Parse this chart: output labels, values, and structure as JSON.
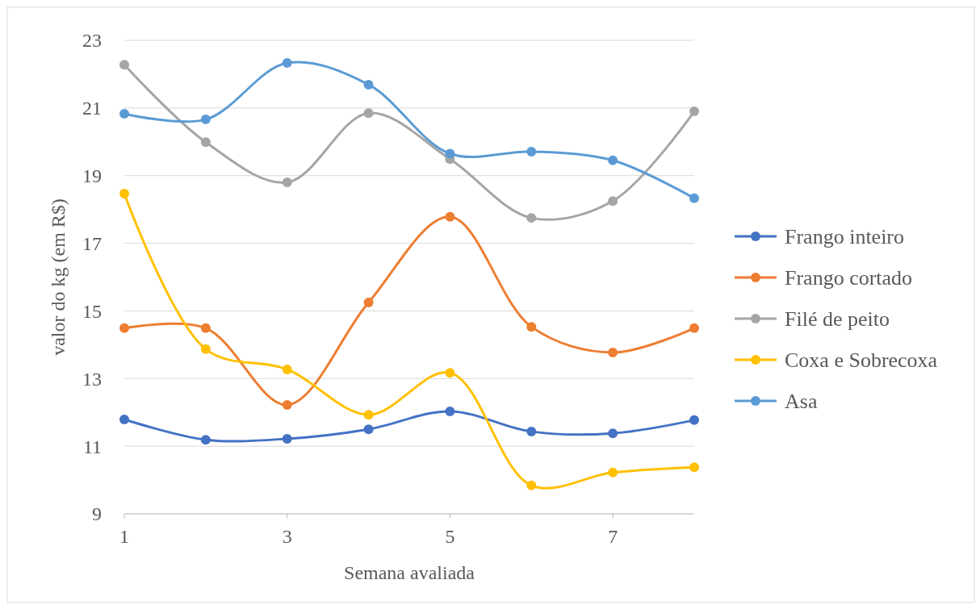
{
  "chart_data": {
    "type": "line",
    "xlabel": "Semana avaliada",
    "ylabel": "valor do kg (em R$)",
    "x": [
      1,
      2,
      3,
      4,
      5,
      6,
      7,
      8
    ],
    "xlim": [
      1,
      8
    ],
    "xticks": [
      1,
      3,
      5,
      7
    ],
    "ylim": [
      9,
      23
    ],
    "yticks": [
      9,
      11,
      13,
      15,
      17,
      19,
      21,
      23
    ],
    "grid": "y",
    "legend": "right",
    "marker": "circle",
    "line_style": "solid",
    "series": [
      {
        "name": "Frango inteiro",
        "color": "#4472c4",
        "values": [
          11.79,
          11.19,
          11.22,
          11.5,
          12.03,
          11.43,
          11.38,
          11.77
        ]
      },
      {
        "name": "Frango cortado",
        "color": "#ed7d31",
        "values": [
          14.49,
          14.49,
          12.22,
          15.25,
          17.78,
          14.53,
          13.77,
          14.49
        ]
      },
      {
        "name": "Filé de peito",
        "color": "#a5a5a5",
        "values": [
          22.28,
          19.99,
          18.8,
          20.85,
          19.49,
          17.75,
          18.25,
          20.9
        ]
      },
      {
        "name": "Coxa e Sobrecoxa",
        "color": "#ffc000",
        "values": [
          18.47,
          13.87,
          13.27,
          11.93,
          13.17,
          9.84,
          10.22,
          10.38
        ]
      },
      {
        "name": "Asa",
        "color": "#5b9bd5",
        "values": [
          20.83,
          20.66,
          22.33,
          21.69,
          19.65,
          19.71,
          19.45,
          18.33
        ]
      }
    ]
  }
}
